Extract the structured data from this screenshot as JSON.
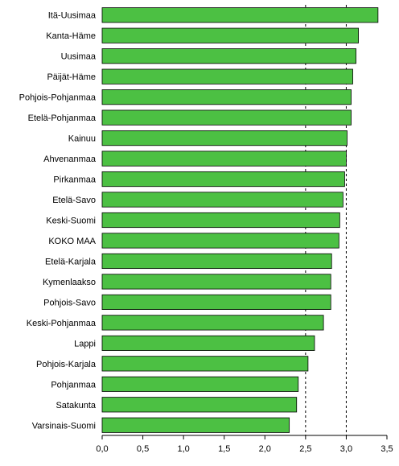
{
  "chart_data": {
    "type": "bar",
    "orientation": "horizontal",
    "categories": [
      "Itä-Uusimaa",
      "Kanta-Häme",
      "Uusimaa",
      "Päijät-Häme",
      "Pohjois-Pohjanmaa",
      "Etelä-Pohjanmaa",
      "Kainuu",
      "Ahvenanmaa",
      "Pirkanmaa",
      "Etelä-Savo",
      "Keski-Suomi",
      "KOKO MAA",
      "Etelä-Karjala",
      "Kymenlaakso",
      "Pohjois-Savo",
      "Keski-Pohjanmaa",
      "Lappi",
      "Pohjois-Karjala",
      "Pohjanmaa",
      "Satakunta",
      "Varsinais-Suomi"
    ],
    "values": [
      3.39,
      3.15,
      3.12,
      3.08,
      3.06,
      3.06,
      3.01,
      3.0,
      2.98,
      2.96,
      2.92,
      2.91,
      2.82,
      2.81,
      2.81,
      2.72,
      2.61,
      2.53,
      2.41,
      2.39,
      2.3
    ],
    "xlim": [
      0,
      3.5
    ],
    "xticks": [
      "0,0",
      "0,5",
      "1,0",
      "1,5",
      "2,0",
      "2,5",
      "3,0",
      "3,5"
    ],
    "reference_lines": [
      2.5,
      3.0
    ],
    "title": "",
    "xlabel": "",
    "ylabel": "",
    "bar_color": "#4cc043",
    "bar_edge_color": "#000000",
    "grid": false,
    "legend": "none"
  }
}
